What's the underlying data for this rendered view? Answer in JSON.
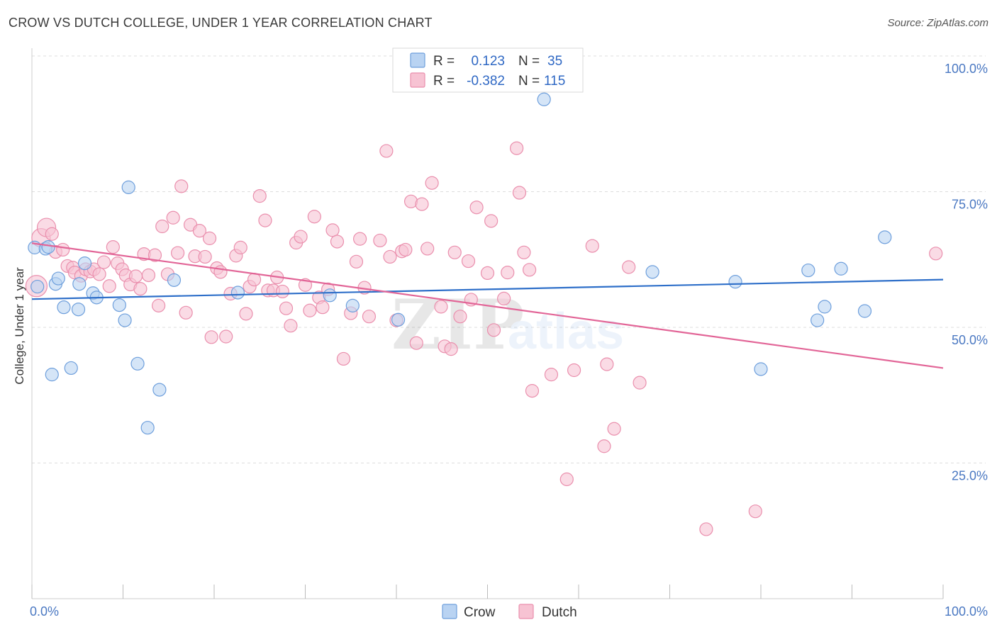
{
  "title": "CROW VS DUTCH COLLEGE, UNDER 1 YEAR CORRELATION CHART",
  "source": "Source: ZipAtlas.com",
  "colors": {
    "crow_fill": "#b9d3f2",
    "crow_stroke": "#6e9fdc",
    "crow_line": "#2e6fc9",
    "dutch_fill": "#f7c3d3",
    "dutch_stroke": "#ea8fad",
    "dutch_line": "#e26597",
    "tick_text": "#4a78c2",
    "grid": "#dddddd"
  },
  "legend": {
    "r_label": "R =",
    "n_label": "N =",
    "crow_r": "0.123",
    "crow_n": "35",
    "dutch_r": "-0.382",
    "dutch_n": "115"
  },
  "watermark": {
    "zip": "ZIP",
    "atlas": "atlas"
  },
  "chart_data": {
    "type": "scatter",
    "title": "CROW VS DUTCH COLLEGE, UNDER 1 YEAR CORRELATION CHART",
    "xlabel": "",
    "ylabel": "College, Under 1 year",
    "xlim": [
      0,
      100
    ],
    "ylim": [
      0,
      100
    ],
    "x_tick_labels": [
      "0.0%",
      "100.0%"
    ],
    "y_tick_labels": [
      "100.0%",
      "75.0%",
      "50.0%",
      "25.0%"
    ],
    "y_tick_values": [
      100,
      75,
      50,
      25
    ],
    "legend_position": "top-center",
    "series": [
      {
        "name": "Crow",
        "r": 0.123,
        "n": 35,
        "trend": {
          "x": [
            0,
            100
          ],
          "y": [
            55.2,
            58.8
          ]
        },
        "points": [
          {
            "x": 0.3,
            "y": 64.7
          },
          {
            "x": 0.6,
            "y": 57.5
          },
          {
            "x": 1.5,
            "y": 64.5
          },
          {
            "x": 1.8,
            "y": 64.8
          },
          {
            "x": 2.6,
            "y": 58.0
          },
          {
            "x": 2.9,
            "y": 59.0
          },
          {
            "x": 2.2,
            "y": 41.3
          },
          {
            "x": 3.5,
            "y": 53.7
          },
          {
            "x": 4.3,
            "y": 42.5
          },
          {
            "x": 5.1,
            "y": 53.3
          },
          {
            "x": 5.2,
            "y": 58.0
          },
          {
            "x": 5.8,
            "y": 61.8
          },
          {
            "x": 6.7,
            "y": 56.3
          },
          {
            "x": 7.1,
            "y": 55.5
          },
          {
            "x": 9.6,
            "y": 54.1
          },
          {
            "x": 10.2,
            "y": 51.3
          },
          {
            "x": 10.6,
            "y": 75.8
          },
          {
            "x": 11.6,
            "y": 43.3
          },
          {
            "x": 12.7,
            "y": 31.5
          },
          {
            "x": 14.0,
            "y": 38.5
          },
          {
            "x": 15.6,
            "y": 58.7
          },
          {
            "x": 22.6,
            "y": 56.4
          },
          {
            "x": 32.7,
            "y": 55.9
          },
          {
            "x": 35.2,
            "y": 54.0
          },
          {
            "x": 40.2,
            "y": 51.4
          },
          {
            "x": 56.2,
            "y": 92.0
          },
          {
            "x": 68.1,
            "y": 60.2
          },
          {
            "x": 77.2,
            "y": 58.4
          },
          {
            "x": 80.0,
            "y": 42.3
          },
          {
            "x": 85.2,
            "y": 60.5
          },
          {
            "x": 86.2,
            "y": 51.3
          },
          {
            "x": 87.0,
            "y": 53.8
          },
          {
            "x": 88.8,
            "y": 60.8
          },
          {
            "x": 91.4,
            "y": 53.0
          },
          {
            "x": 93.6,
            "y": 66.6
          }
        ]
      },
      {
        "name": "Dutch",
        "r": -0.382,
        "n": 115,
        "trend": {
          "x": [
            0,
            100
          ],
          "y": [
            65.5,
            42.5
          ]
        },
        "points": [
          {
            "x": 0.5,
            "y": 57.6
          },
          {
            "x": 1.0,
            "y": 66.5
          },
          {
            "x": 1.6,
            "y": 68.4
          },
          {
            "x": 2.2,
            "y": 67.2
          },
          {
            "x": 2.6,
            "y": 63.9
          },
          {
            "x": 3.4,
            "y": 64.3
          },
          {
            "x": 3.9,
            "y": 61.3
          },
          {
            "x": 4.5,
            "y": 61.0
          },
          {
            "x": 4.7,
            "y": 60.1
          },
          {
            "x": 5.4,
            "y": 59.5
          },
          {
            "x": 5.9,
            "y": 60.7
          },
          {
            "x": 6.4,
            "y": 60.3
          },
          {
            "x": 6.8,
            "y": 60.7
          },
          {
            "x": 7.4,
            "y": 59.8
          },
          {
            "x": 7.9,
            "y": 62.0
          },
          {
            "x": 8.5,
            "y": 57.6
          },
          {
            "x": 8.9,
            "y": 64.8
          },
          {
            "x": 9.4,
            "y": 61.8
          },
          {
            "x": 9.9,
            "y": 60.7
          },
          {
            "x": 10.3,
            "y": 59.6
          },
          {
            "x": 10.8,
            "y": 57.9
          },
          {
            "x": 11.4,
            "y": 59.4
          },
          {
            "x": 11.9,
            "y": 57.1
          },
          {
            "x": 12.3,
            "y": 63.5
          },
          {
            "x": 12.8,
            "y": 59.6
          },
          {
            "x": 13.5,
            "y": 63.3
          },
          {
            "x": 13.9,
            "y": 54.0
          },
          {
            "x": 14.3,
            "y": 68.6
          },
          {
            "x": 14.9,
            "y": 59.8
          },
          {
            "x": 15.5,
            "y": 70.2
          },
          {
            "x": 16.0,
            "y": 63.7
          },
          {
            "x": 16.4,
            "y": 76.0
          },
          {
            "x": 16.9,
            "y": 52.7
          },
          {
            "x": 17.4,
            "y": 68.9
          },
          {
            "x": 17.9,
            "y": 63.1
          },
          {
            "x": 18.4,
            "y": 67.8
          },
          {
            "x": 19.0,
            "y": 63.0
          },
          {
            "x": 19.5,
            "y": 66.4
          },
          {
            "x": 19.7,
            "y": 48.2
          },
          {
            "x": 20.3,
            "y": 60.9
          },
          {
            "x": 20.7,
            "y": 60.2
          },
          {
            "x": 21.3,
            "y": 48.3
          },
          {
            "x": 21.8,
            "y": 56.2
          },
          {
            "x": 22.4,
            "y": 63.2
          },
          {
            "x": 22.9,
            "y": 64.7
          },
          {
            "x": 23.5,
            "y": 52.5
          },
          {
            "x": 23.9,
            "y": 57.5
          },
          {
            "x": 24.4,
            "y": 58.8
          },
          {
            "x": 25.0,
            "y": 74.2
          },
          {
            "x": 25.6,
            "y": 69.7
          },
          {
            "x": 25.9,
            "y": 56.8
          },
          {
            "x": 26.5,
            "y": 56.8
          },
          {
            "x": 26.9,
            "y": 59.2
          },
          {
            "x": 27.5,
            "y": 56.6
          },
          {
            "x": 27.9,
            "y": 53.5
          },
          {
            "x": 28.4,
            "y": 50.3
          },
          {
            "x": 29.0,
            "y": 65.6
          },
          {
            "x": 29.5,
            "y": 66.7
          },
          {
            "x": 30.0,
            "y": 57.8
          },
          {
            "x": 30.5,
            "y": 53.1
          },
          {
            "x": 31.0,
            "y": 70.4
          },
          {
            "x": 31.5,
            "y": 55.5
          },
          {
            "x": 31.9,
            "y": 53.7
          },
          {
            "x": 32.5,
            "y": 57.0
          },
          {
            "x": 33.0,
            "y": 67.9
          },
          {
            "x": 33.5,
            "y": 65.8
          },
          {
            "x": 34.2,
            "y": 44.2
          },
          {
            "x": 35.0,
            "y": 52.6
          },
          {
            "x": 35.6,
            "y": 62.1
          },
          {
            "x": 36.0,
            "y": 66.3
          },
          {
            "x": 36.5,
            "y": 57.3
          },
          {
            "x": 37.0,
            "y": 52.0
          },
          {
            "x": 38.2,
            "y": 66.0
          },
          {
            "x": 38.9,
            "y": 82.5
          },
          {
            "x": 39.3,
            "y": 63.0
          },
          {
            "x": 40.0,
            "y": 51.3
          },
          {
            "x": 40.6,
            "y": 64.0
          },
          {
            "x": 41.0,
            "y": 64.3
          },
          {
            "x": 41.6,
            "y": 73.2
          },
          {
            "x": 42.2,
            "y": 47.1
          },
          {
            "x": 42.8,
            "y": 72.7
          },
          {
            "x": 43.4,
            "y": 64.5
          },
          {
            "x": 43.9,
            "y": 76.6
          },
          {
            "x": 44.9,
            "y": 53.8
          },
          {
            "x": 45.3,
            "y": 46.5
          },
          {
            "x": 46.0,
            "y": 46.0
          },
          {
            "x": 46.4,
            "y": 63.8
          },
          {
            "x": 47.0,
            "y": 52.0
          },
          {
            "x": 47.9,
            "y": 62.2
          },
          {
            "x": 48.2,
            "y": 55.1
          },
          {
            "x": 48.8,
            "y": 72.1
          },
          {
            "x": 50.0,
            "y": 60.0
          },
          {
            "x": 50.4,
            "y": 69.6
          },
          {
            "x": 50.7,
            "y": 49.5
          },
          {
            "x": 51.8,
            "y": 55.3
          },
          {
            "x": 52.2,
            "y": 60.1
          },
          {
            "x": 53.2,
            "y": 83.0
          },
          {
            "x": 53.5,
            "y": 74.8
          },
          {
            "x": 54.0,
            "y": 63.8
          },
          {
            "x": 54.6,
            "y": 60.6
          },
          {
            "x": 54.9,
            "y": 38.3
          },
          {
            "x": 57.0,
            "y": 41.3
          },
          {
            "x": 58.7,
            "y": 22.0
          },
          {
            "x": 59.5,
            "y": 42.1
          },
          {
            "x": 61.5,
            "y": 65.0
          },
          {
            "x": 62.8,
            "y": 28.1
          },
          {
            "x": 63.1,
            "y": 43.2
          },
          {
            "x": 63.9,
            "y": 31.3
          },
          {
            "x": 65.5,
            "y": 61.1
          },
          {
            "x": 66.7,
            "y": 39.8
          },
          {
            "x": 74.0,
            "y": 12.8
          },
          {
            "x": 79.4,
            "y": 16.1
          },
          {
            "x": 99.2,
            "y": 63.6
          }
        ]
      }
    ]
  }
}
